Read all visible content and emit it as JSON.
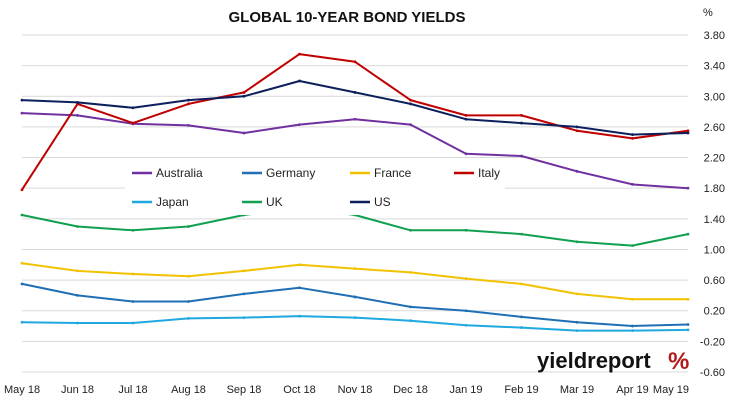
{
  "chart_data": {
    "type": "line",
    "title": "GLOBAL 10-YEAR BOND YIELDS",
    "unit": "%",
    "ylim": [
      -0.6,
      3.8
    ],
    "yticks": [
      "3.80",
      "3.40",
      "3.00",
      "2.60",
      "2.20",
      "1.80",
      "1.40",
      "1.00",
      "0.60",
      "0.20",
      "-0.20",
      "-0.60"
    ],
    "ytick_values": [
      3.8,
      3.4,
      3.0,
      2.6,
      2.2,
      1.8,
      1.4,
      1.0,
      0.6,
      0.2,
      -0.2,
      -0.6
    ],
    "x_labels": [
      "May 18",
      "Jun 18",
      "Jul 18",
      "Aug 18",
      "Sep 18",
      "Oct 18",
      "Nov 18",
      "Dec 18",
      "Jan 19",
      "Feb 19",
      "Mar 19",
      "Apr 19",
      "May 19"
    ],
    "grid": true,
    "legend_placement": "middle-left",
    "series": [
      {
        "name": "Australia",
        "color": "#7030a0",
        "values": [
          2.78,
          2.75,
          2.64,
          2.62,
          2.52,
          2.63,
          2.7,
          2.63,
          2.25,
          2.22,
          2.02,
          1.85,
          1.8
        ]
      },
      {
        "name": "Germany",
        "color": "#1f6fb4",
        "values": [
          0.55,
          0.4,
          0.32,
          0.32,
          0.42,
          0.5,
          0.38,
          0.25,
          0.2,
          0.12,
          0.05,
          0.0,
          0.02
        ]
      },
      {
        "name": "France",
        "color": "#f2c200",
        "values": [
          0.82,
          0.72,
          0.68,
          0.65,
          0.72,
          0.8,
          0.75,
          0.7,
          0.62,
          0.55,
          0.42,
          0.35,
          0.35
        ]
      },
      {
        "name": "Italy",
        "color": "#c00000",
        "values": [
          1.78,
          2.9,
          2.65,
          2.9,
          3.05,
          3.55,
          3.45,
          2.95,
          2.75,
          2.75,
          2.55,
          2.45,
          2.55
        ]
      },
      {
        "name": "Japan",
        "color": "#1fa9e0",
        "values": [
          0.05,
          0.04,
          0.04,
          0.1,
          0.11,
          0.13,
          0.11,
          0.07,
          0.01,
          -0.02,
          -0.06,
          -0.06,
          -0.05
        ]
      },
      {
        "name": "UK",
        "color": "#10a050",
        "values": [
          1.45,
          1.3,
          1.25,
          1.3,
          1.45,
          1.55,
          1.45,
          1.25,
          1.25,
          1.2,
          1.1,
          1.05,
          1.2
        ]
      },
      {
        "name": "US",
        "color": "#0d1f5c",
        "values": [
          2.95,
          2.92,
          2.85,
          2.95,
          3.0,
          3.2,
          3.05,
          2.9,
          2.7,
          2.65,
          2.6,
          2.5,
          2.52
        ]
      }
    ]
  },
  "brand": {
    "text": "yieldreport",
    "symbol": "%"
  }
}
